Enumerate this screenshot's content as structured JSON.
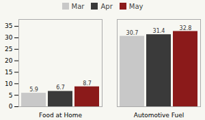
{
  "chart_data": {
    "type": "bar",
    "categories": [
      "Food at Home",
      "Automotive Fuel"
    ],
    "series": [
      {
        "name": "Mar",
        "color": "#c8c8c8",
        "values": [
          5.9,
          30.7
        ]
      },
      {
        "name": "Apr",
        "color": "#3a3a3a",
        "values": [
          6.7,
          31.4
        ]
      },
      {
        "name": "May",
        "color": "#8b1a1a",
        "values": [
          8.7,
          32.8
        ]
      }
    ],
    "ylim": [
      0,
      38
    ],
    "yticks": [
      0,
      5,
      10,
      15,
      20,
      25,
      30,
      35
    ],
    "grid": false,
    "legend": "top",
    "data_labels": true
  }
}
